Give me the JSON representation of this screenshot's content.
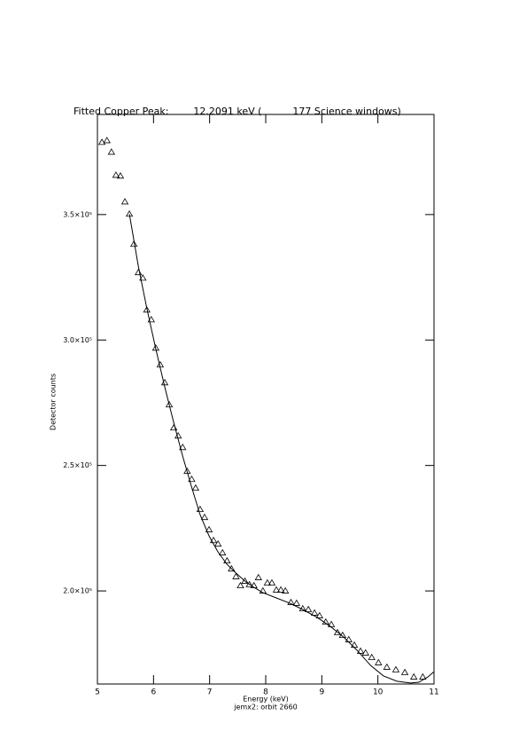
{
  "chart_data": {
    "type": "scatter",
    "title": "Fitted Copper Peak:        12.2091 keV (          177 Science windows)",
    "subtitle": "jemx2: orbit 2660",
    "x_label": "Energy (keV)",
    "y_label": "Detector counts",
    "xlim": [
      5,
      11
    ],
    "xticks": [
      5,
      6,
      7,
      8,
      9,
      10,
      11
    ],
    "ylim": [
      162900,
      389900
    ],
    "yticks": [
      {
        "value": 200000,
        "label": "2.0×10⁵"
      },
      {
        "value": 250000,
        "label": "2.5×10⁵"
      },
      {
        "value": 300000,
        "label": "3.0×10⁵"
      },
      {
        "value": 350000,
        "label": "3.5×10⁵"
      }
    ],
    "grid": false,
    "series": [
      {
        "marker": "triangle",
        "color": "#000000",
        "x": [
          5.08,
          5.17,
          5.25,
          5.33,
          5.41,
          5.49,
          5.57,
          5.65,
          5.73,
          5.81,
          5.88,
          5.96,
          6.04,
          6.12,
          6.2,
          6.28,
          6.36,
          6.44,
          6.52,
          6.6,
          6.68,
          6.75,
          6.83,
          6.91,
          6.99,
          7.07,
          7.15,
          7.23,
          7.31,
          7.39,
          7.47,
          7.55,
          7.63,
          7.71,
          7.79,
          7.87,
          7.95,
          8.03,
          8.11,
          8.19,
          8.27,
          8.35,
          8.45,
          8.55,
          8.66,
          8.76,
          8.87,
          8.96,
          9.07,
          9.17,
          9.28,
          9.37,
          9.48,
          9.58,
          9.69,
          9.78,
          9.89,
          10.01,
          10.16,
          10.32,
          10.48,
          10.64,
          10.8
        ],
        "values": [
          378800,
          379500,
          374900,
          365700,
          365400,
          355100,
          350200,
          338200,
          326900,
          324700,
          312000,
          308100,
          296800,
          290100,
          283000,
          274200,
          265000,
          261800,
          257200,
          247700,
          244500,
          241000,
          232500,
          229300,
          224400,
          220100,
          218700,
          215200,
          212000,
          208800,
          205700,
          202100,
          203900,
          202500,
          202100,
          205300,
          200000,
          203200,
          203200,
          200400,
          200400,
          200000,
          195400,
          195100,
          192900,
          192600,
          191200,
          190100,
          187600,
          186600,
          183400,
          182300,
          180600,
          178400,
          176000,
          175300,
          173500,
          171400,
          169600,
          168600,
          167500,
          165700,
          165700
        ]
      },
      {
        "marker": "line",
        "color": "#000000",
        "x": [
          5.57,
          5.73,
          5.88,
          6.04,
          6.2,
          6.36,
          6.52,
          6.68,
          6.83,
          6.99,
          7.15,
          7.31,
          7.47,
          7.63,
          7.79,
          7.95,
          8.19,
          8.43,
          8.66,
          8.92,
          9.15,
          9.39,
          9.63,
          9.87,
          10.1,
          10.34,
          10.58,
          10.73,
          10.89,
          11.0
        ],
        "values": [
          350200,
          329300,
          312700,
          296500,
          281300,
          267100,
          253700,
          241300,
          230400,
          221900,
          215500,
          210600,
          207100,
          203900,
          201400,
          199300,
          197200,
          195100,
          192600,
          189400,
          185900,
          181600,
          176300,
          170300,
          166100,
          164000,
          163300,
          163600,
          165700,
          167800
        ]
      }
    ]
  }
}
